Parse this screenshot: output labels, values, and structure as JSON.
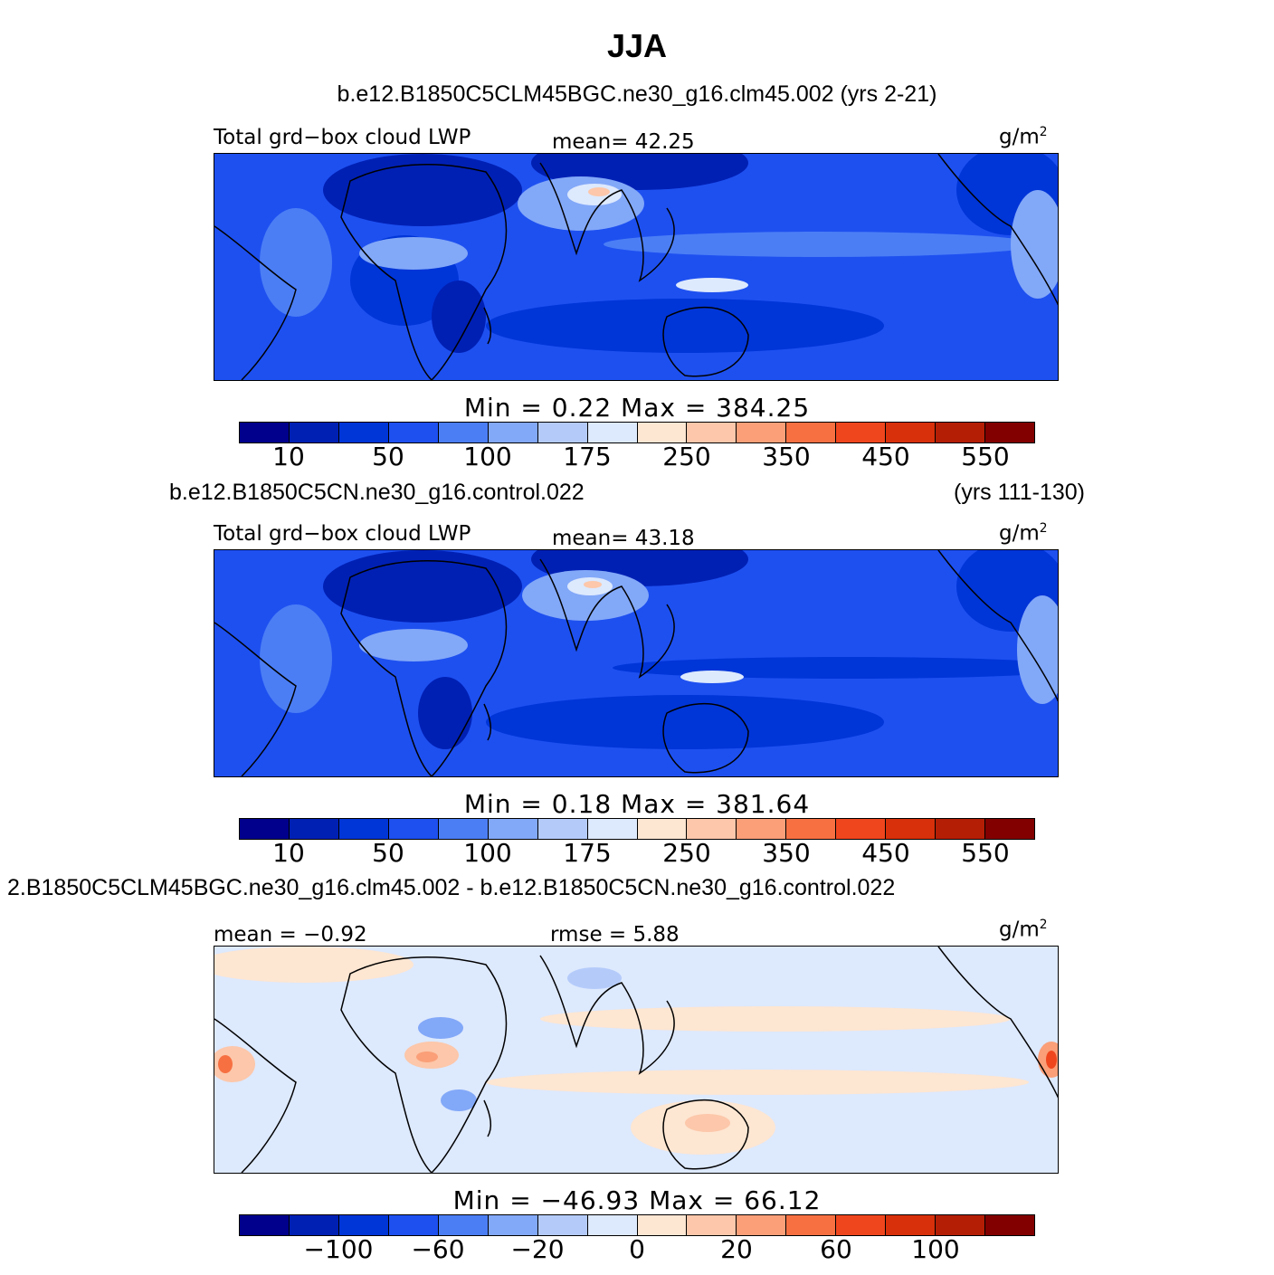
{
  "title": "JJA",
  "panels": [
    {
      "case_title": "b.e12.B1850C5CLM45BGC.ne30_g16.clm45.002 (yrs 2-21)",
      "case_title_right": "",
      "left_label": "Total grd−box cloud LWP",
      "center_label": "mean=  42.25",
      "units": "g/m",
      "units_sup": "2",
      "minmax": "Min =    0.22  Max  =  384.25",
      "cbar_ticks": [
        "10",
        "50",
        "100",
        "175",
        "250",
        "350",
        "450",
        "550"
      ],
      "cbar_colors": [
        "#00008c",
        "#0020b4",
        "#0035d8",
        "#1e50f0",
        "#4b7ef5",
        "#82a8f8",
        "#b4cbfa",
        "#dde9fd",
        "#fde6d2",
        "#fcc7aa",
        "#fa9f78",
        "#f77042",
        "#f0461e",
        "#d8300a",
        "#b41e05",
        "#820000"
      ],
      "map_bg": "#1e50f0"
    },
    {
      "case_title": "b.e12.B1850C5CN.ne30_g16.control.022",
      "case_title_right": "(yrs 111-130)",
      "left_label": "Total grd−box cloud LWP",
      "center_label": "mean=  43.18",
      "units": "g/m",
      "units_sup": "2",
      "minmax": "Min =    0.18  Max  =  381.64",
      "cbar_ticks": [
        "10",
        "50",
        "100",
        "175",
        "250",
        "350",
        "450",
        "550"
      ],
      "cbar_colors": [
        "#00008c",
        "#0020b4",
        "#0035d8",
        "#1e50f0",
        "#4b7ef5",
        "#82a8f8",
        "#b4cbfa",
        "#dde9fd",
        "#fde6d2",
        "#fcc7aa",
        "#fa9f78",
        "#f77042",
        "#f0461e",
        "#d8300a",
        "#b41e05",
        "#820000"
      ],
      "map_bg": "#1e50f0"
    },
    {
      "case_title": "2.B1850C5CLM45BGC.ne30_g16.clm45.002 - b.e12.B1850C5CN.ne30_g16.control.022",
      "case_title_right": "",
      "left_label": "mean =  −0.92",
      "center_label": "rmse =    5.88",
      "units": "g/m",
      "units_sup": "2",
      "minmax": "Min  =  −46.93  Max  =    66.12",
      "cbar_ticks": [
        "−100",
        "−60",
        "−20",
        "0",
        "20",
        "60",
        "100"
      ],
      "cbar_colors": [
        "#00008c",
        "#0020b4",
        "#0035d8",
        "#1e50f0",
        "#4b7ef5",
        "#82a8f8",
        "#b4cbfa",
        "#dde9fd",
        "#fde6d2",
        "#fcc7aa",
        "#fa9f78",
        "#f77042",
        "#f0461e",
        "#d8300a",
        "#b41e05",
        "#820000"
      ],
      "map_bg": "#dde9fd"
    }
  ]
}
